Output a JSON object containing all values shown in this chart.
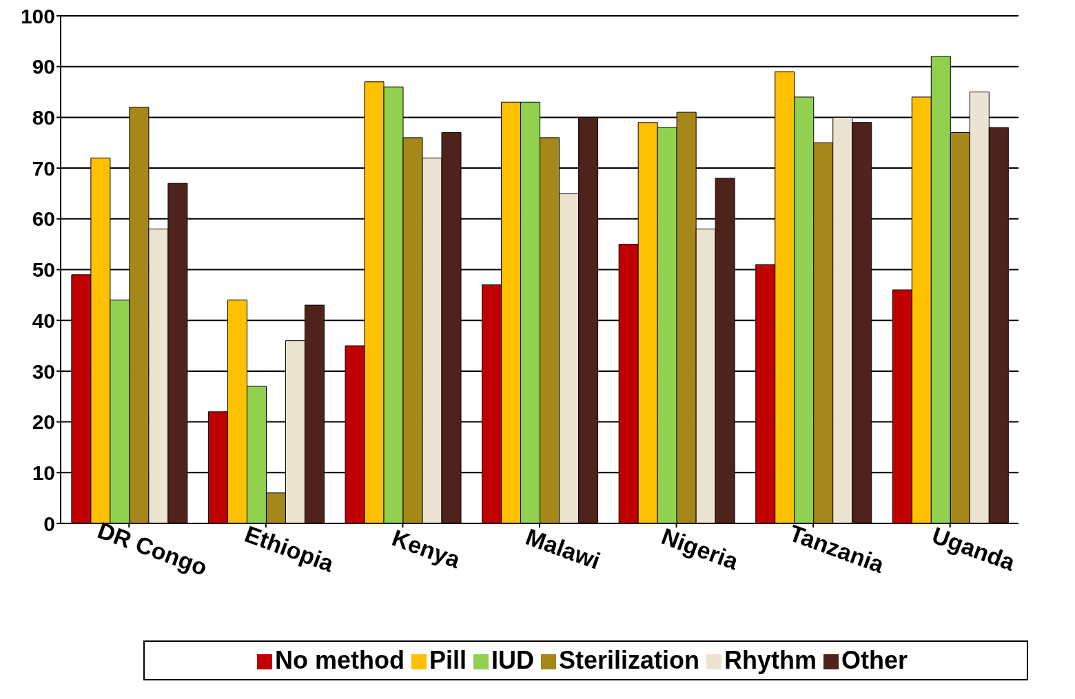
{
  "chart_data": {
    "type": "bar",
    "categories": [
      "DR Congo",
      "Ethiopia",
      "Kenya",
      "Malawi",
      "Nigeria",
      "Tanzania",
      "Uganda"
    ],
    "series": [
      {
        "name": "No method",
        "color": "#c00000",
        "values": [
          49,
          22,
          35,
          47,
          55,
          51,
          46
        ]
      },
      {
        "name": "Pill",
        "color": "#ffc000",
        "values": [
          72,
          44,
          87,
          83,
          79,
          89,
          84
        ]
      },
      {
        "name": "IUD",
        "color": "#92d050",
        "values": [
          44,
          27,
          86,
          83,
          78,
          84,
          92
        ]
      },
      {
        "name": "Sterilization",
        "color": "#a6881a",
        "values": [
          82,
          6,
          76,
          76,
          81,
          75,
          77
        ]
      },
      {
        "name": "Rhythm",
        "color": "#ece4d0",
        "values": [
          58,
          36,
          72,
          65,
          58,
          80,
          85
        ]
      },
      {
        "name": "Other",
        "color": "#4f231c",
        "values": [
          67,
          43,
          77,
          80,
          68,
          79,
          78
        ]
      }
    ],
    "ylim": [
      0,
      100
    ],
    "yticks": [
      0,
      10,
      20,
      30,
      40,
      50,
      60,
      70,
      80,
      90,
      100
    ],
    "grid": "y",
    "legend": "bottom"
  }
}
